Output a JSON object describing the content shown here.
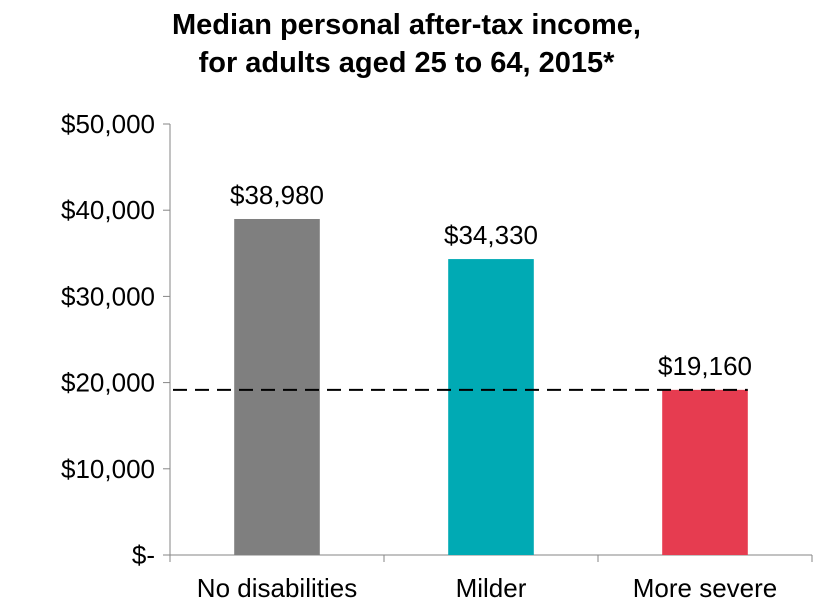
{
  "chart_data": {
    "type": "bar",
    "title_line1": "Median personal after-tax income,",
    "title_line2": "for adults aged 25 to 64, 2015*",
    "categories": [
      "No disabilities",
      "Milder",
      "More severe"
    ],
    "values": [
      38980,
      34330,
      19160
    ],
    "data_labels": [
      "$38,980",
      "$34,330",
      "$19,160"
    ],
    "colors": [
      "#7f7f7f",
      "#00aab4",
      "#e63c50"
    ],
    "ylim": [
      0,
      50000
    ],
    "yticks": [
      0,
      10000,
      20000,
      30000,
      40000,
      50000
    ],
    "ytick_labels": [
      "$-",
      "$10,000",
      "$20,000",
      "$30,000",
      "$40,000",
      "$50,000"
    ],
    "reference_line": {
      "value": 19160,
      "style": "dashed"
    },
    "grid": false,
    "xlabel": "",
    "ylabel": ""
  }
}
